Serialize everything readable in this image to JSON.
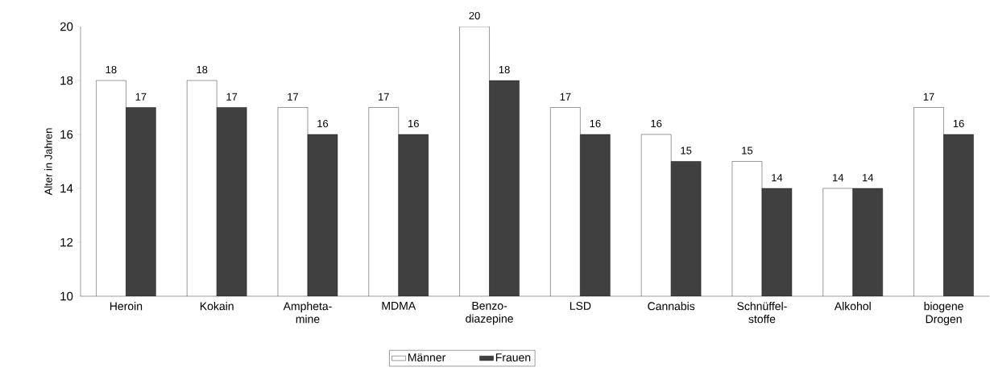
{
  "chart_data": {
    "type": "bar",
    "ylabel": "Alter in Jahren",
    "categories": [
      "Heroin",
      "Kokain",
      "Ampheta-mine",
      "MDMA",
      "Benzo-diazepine",
      "LSD",
      "Cannabis",
      "Schnüffel-stoffe",
      "Alkohol",
      "biogene Drogen"
    ],
    "series": [
      {
        "name": "Männer",
        "color": "#ffffff",
        "values": [
          18,
          18,
          17,
          17,
          20,
          17,
          16,
          15,
          14,
          17
        ]
      },
      {
        "name": "Frauen",
        "color": "#404040",
        "values": [
          17,
          17,
          16,
          16,
          18,
          16,
          15,
          14,
          14,
          16
        ]
      }
    ],
    "ylim": [
      10,
      20
    ],
    "yticks": [
      10,
      12,
      14,
      16,
      18,
      20
    ],
    "data_labels": true,
    "legend": "bottom"
  }
}
